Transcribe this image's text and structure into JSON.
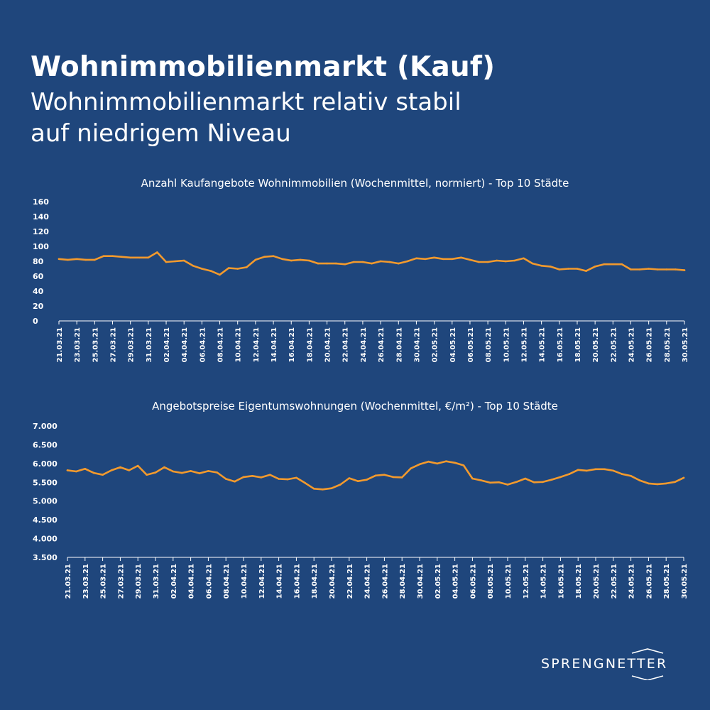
{
  "header": {
    "title": "Wohnimmobilienmarkt (Kauf)",
    "subtitle_line1": "Wohnimmobilienmarkt relativ stabil",
    "subtitle_line2": "auf niedrigem Niveau"
  },
  "brand": {
    "name": "SPRENGNETTER",
    "color": "#ffffff"
  },
  "colors": {
    "background": "#1f467c",
    "line": "#f39a2d",
    "axis": "#ffffff"
  },
  "chart_data": [
    {
      "type": "line",
      "title": "Anzahl Kaufangebote Wohnimmobilien (Wochenmittel, normiert) - Top 10 Städte",
      "xlabel": "",
      "ylabel": "",
      "ylim": [
        0,
        160
      ],
      "yticks": [
        0,
        20,
        40,
        60,
        80,
        100,
        120,
        140,
        160
      ],
      "ytick_labels": [
        "0",
        "20",
        "40",
        "60",
        "80",
        "100",
        "120",
        "140",
        "160"
      ],
      "x_tick_labels": [
        "21.03.21",
        "23.03.21",
        "25.03.21",
        "27.03.21",
        "29.03.21",
        "31.03.21",
        "02.04.21",
        "04.04.21",
        "06.04.21",
        "08.04.21",
        "10.04.21",
        "12.04.21",
        "14.04.21",
        "16.04.21",
        "18.04.21",
        "20.04.21",
        "22.04.21",
        "24.04.21",
        "26.04.21",
        "28.04.21",
        "30.04.21",
        "02.05.21",
        "04.05.21",
        "06.05.21",
        "08.05.21",
        "10.05.21",
        "12.05.21",
        "14.05.21",
        "16.05.21",
        "18.05.21",
        "20.05.21",
        "22.05.21",
        "24.05.21",
        "26.05.21",
        "28.05.21",
        "30.05.21"
      ],
      "grid": false,
      "series": [
        {
          "name": "",
          "values": [
            83,
            82,
            83,
            82,
            82,
            87,
            87,
            86,
            85,
            85,
            85,
            92,
            79,
            80,
            81,
            74,
            70,
            67,
            62,
            71,
            70,
            72,
            82,
            86,
            87,
            83,
            81,
            82,
            81,
            77,
            77,
            77,
            76,
            79,
            79,
            77,
            80,
            79,
            77,
            80,
            84,
            83,
            85,
            83,
            83,
            85,
            82,
            79,
            79,
            81,
            80,
            81,
            84,
            77,
            74,
            73,
            69,
            70,
            70,
            67,
            73,
            76,
            76,
            76,
            69,
            69,
            70,
            69,
            69,
            69,
            68
          ]
        }
      ]
    },
    {
      "type": "line",
      "title": "Angebotspreise Eigentumswohnungen (Wochenmittel, €/m²) - Top 10 Städte",
      "xlabel": "",
      "ylabel": "",
      "ylim": [
        3500,
        7000
      ],
      "yticks": [
        3500,
        4000,
        4500,
        5000,
        5500,
        6000,
        6500,
        7000
      ],
      "ytick_labels": [
        "3.500",
        "4.000",
        "4.500",
        "5.000",
        "5.500",
        "6.000",
        "6.500",
        "7.000"
      ],
      "x_tick_labels": [
        "21.03.21",
        "23.03.21",
        "25.03.21",
        "27.03.21",
        "29.03.21",
        "31.03.21",
        "02.04.21",
        "04.04.21",
        "06.04.21",
        "08.04.21",
        "10.04.21",
        "12.04.21",
        "14.04.21",
        "16.04.21",
        "18.04.21",
        "20.04.21",
        "22.04.21",
        "24.04.21",
        "26.04.21",
        "28.04.21",
        "30.04.21",
        "02.05.21",
        "04.05.21",
        "06.05.21",
        "08.05.21",
        "10.05.21",
        "12.05.21",
        "14.05.21",
        "16.05.21",
        "18.05.21",
        "20.05.21",
        "22.05.21",
        "24.05.21",
        "26.05.21",
        "28.05.21",
        "30.05.21"
      ],
      "grid": false,
      "series": [
        {
          "name": "",
          "values": [
            5820,
            5790,
            5860,
            5750,
            5700,
            5820,
            5900,
            5820,
            5940,
            5700,
            5760,
            5900,
            5790,
            5750,
            5800,
            5740,
            5800,
            5760,
            5590,
            5520,
            5640,
            5670,
            5630,
            5700,
            5590,
            5580,
            5620,
            5480,
            5330,
            5310,
            5340,
            5440,
            5610,
            5530,
            5570,
            5680,
            5700,
            5640,
            5630,
            5870,
            5980,
            6050,
            6000,
            6060,
            6020,
            5950,
            5600,
            5550,
            5490,
            5500,
            5440,
            5510,
            5600,
            5500,
            5510,
            5570,
            5640,
            5720,
            5830,
            5810,
            5850,
            5850,
            5810,
            5720,
            5670,
            5550,
            5470,
            5450,
            5470,
            5510,
            5620
          ]
        }
      ]
    }
  ]
}
